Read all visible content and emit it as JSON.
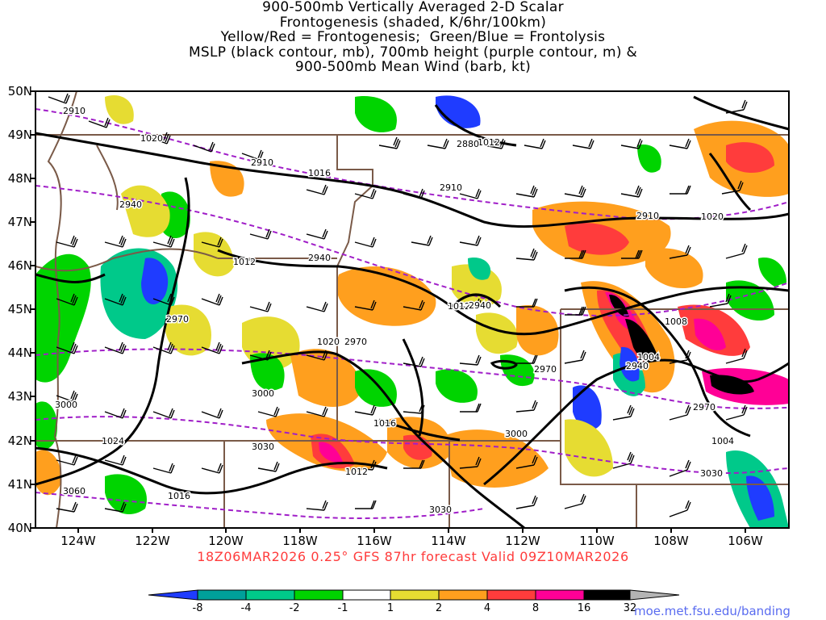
{
  "title_lines": [
    "900-500mb Vertically Averaged 2-D Scalar",
    "Frontogenesis (shaded, K/6hr/100km)",
    "Yellow/Red = Frontogenesis;  Green/Blue = Frontolysis",
    "MSLP (black contour, mb), 700mb height (purple contour, m) &",
    "900-500mb Mean Wind (barb, kt)"
  ],
  "valid_line": "18Z06MAR2026 0.25° GFS 87hr forecast Valid 09Z10MAR2026",
  "credit": "moe.met.fsu.edu/banding",
  "lat_labels": [
    "50N",
    "49N",
    "48N",
    "47N",
    "46N",
    "45N",
    "44N",
    "43N",
    "42N",
    "41N",
    "40N"
  ],
  "lon_labels": [
    "124W",
    "122W",
    "120W",
    "118W",
    "116W",
    "114W",
    "112W",
    "110W",
    "108W",
    "106W"
  ],
  "colorbar": {
    "labels": [
      "-8",
      "-4",
      "-2",
      "-1",
      "1",
      "2",
      "4",
      "8",
      "16",
      "32"
    ],
    "colors": [
      "#1f3cff",
      "#00a09a",
      "#00c98a",
      "#00d400",
      "#ffffff",
      "#e6dc32",
      "#ff9f1e",
      "#ff3c3c",
      "#ff0096",
      "#000000",
      "#b4b4b4"
    ]
  },
  "mslp_labels": [
    "1020",
    "1016",
    "1012",
    "1020",
    "1020",
    "1012",
    "1008",
    "1004",
    "1004",
    "1024",
    "1016",
    "1012",
    "1016",
    "1012"
  ],
  "height_labels": [
    "2910",
    "2910",
    "2880",
    "2910",
    "2940",
    "2910",
    "2940",
    "2970",
    "2970",
    "2970",
    "2940",
    "3000",
    "3030",
    "3060",
    "3030",
    "3000",
    "3030",
    "2970",
    "3000",
    "2940"
  ],
  "colors": {
    "mslp": "#000000",
    "height": "#a01ec8",
    "borders": "#7a5a48",
    "title": "#000000",
    "valid": "#ff3b3b",
    "credit": "#5a6cf0"
  }
}
